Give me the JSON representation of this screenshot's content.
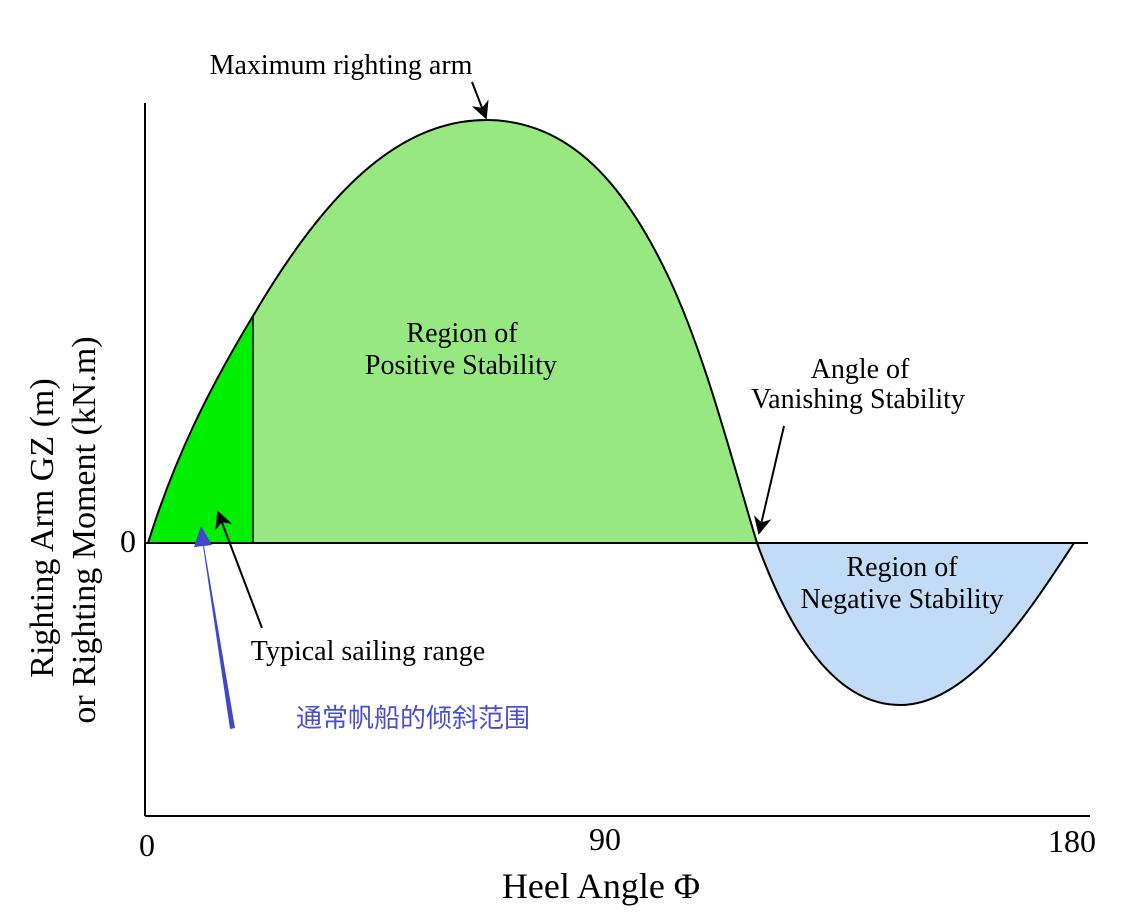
{
  "chart_data": {
    "type": "area",
    "xlabel": "Heel Angle Φ",
    "ylabel_line1": "Righting Arm GZ (m)",
    "ylabel_line2": "or Righting Moment (kN.m)",
    "x_ticks": [
      "0",
      "90",
      "180"
    ],
    "y_ticks": [
      "0"
    ],
    "xlim": [
      0,
      180
    ],
    "annotations": {
      "max_arm": "Maximum righting arm",
      "positive_line1": "Region of",
      "positive_line2": "Positive Stability",
      "vanishing_line1": "Angle of",
      "vanishing_line2": "Vanishing Stability",
      "negative_line1": "Region of",
      "negative_line2": "Negative Stability",
      "sailing": "Typical sailing range",
      "sailing_cn": "通常帆船的倾斜范围"
    },
    "colors": {
      "positive": "#98e882",
      "sailing": "#00ee00",
      "negative": "#c2dcf8",
      "cn_text": "#4a4fd2",
      "cn_arrow": "#3f48cc"
    }
  }
}
